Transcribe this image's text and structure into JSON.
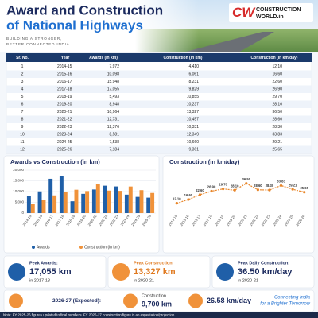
{
  "header": {
    "title_line1": "Award and Construction",
    "title_line2": "of National Highways",
    "tagline_1": "BUILDING A STRONGER,",
    "tagline_2": "BETTER CONNECTED INDIA",
    "logo_mark": "CW",
    "logo_text_1": "CONSTRUCTION",
    "logo_text_2": "WORLD.in"
  },
  "table": {
    "columns": [
      "Sr. No.",
      "Year",
      "Awards (in km)",
      "Construction (in km)",
      "Construction (in km/day)"
    ],
    "rows": [
      [
        "1",
        "2014-15",
        "7,972",
        "4,410",
        "12.10"
      ],
      [
        "2",
        "2015-16",
        "10,098",
        "6,061",
        "16.60"
      ],
      [
        "3",
        "2016-17",
        "15,948",
        "8,231",
        "22.60"
      ],
      [
        "4",
        "2017-18",
        "17,055",
        "9,829",
        "26.90"
      ],
      [
        "5",
        "2018-19",
        "5,493",
        "10,855",
        "29.70"
      ],
      [
        "6",
        "2019-20",
        "8,948",
        "10,237",
        "28.10"
      ],
      [
        "7",
        "2020-21",
        "10,964",
        "13,327",
        "36.50"
      ],
      [
        "8",
        "2021-22",
        "12,731",
        "10,457",
        "28.60"
      ],
      [
        "9",
        "2022-23",
        "12,376",
        "10,331",
        "28.30"
      ],
      [
        "10",
        "2023-24",
        "8,581",
        "12,349",
        "33.83"
      ],
      [
        "11",
        "2024-25",
        "7,538",
        "10,660",
        "29.21"
      ],
      [
        "12",
        "2025-26",
        "7,184",
        "9,361",
        "25.65"
      ]
    ]
  },
  "chart_data": [
    {
      "type": "bar",
      "title": "Awards vs Construction (in km)",
      "categories": [
        "2014-15",
        "2015-16",
        "2016-17",
        "2017-18",
        "2018-19",
        "2019-20",
        "2020-21",
        "2021-22",
        "2022-23",
        "2023-24",
        "2024-25",
        "2025-26"
      ],
      "series": [
        {
          "name": "Awards",
          "color": "#1f5fa8",
          "values": [
            7972,
            10098,
            15948,
            17055,
            5493,
            8948,
            10964,
            12731,
            12376,
            8581,
            7538,
            7184
          ]
        },
        {
          "name": "Construction (in km)",
          "color": "#f0923a",
          "values": [
            4410,
            6061,
            8231,
            9829,
            10855,
            10237,
            13327,
            10457,
            10331,
            12349,
            10660,
            9361
          ]
        }
      ],
      "ylim": [
        0,
        20000
      ],
      "yticks": [
        0,
        {
          "value": 5000,
          "label": "5,000"
        },
        {
          "value": 10000,
          "label": "10,000"
        },
        {
          "value": 15000,
          "label": "15,000"
        },
        {
          "value": 20000,
          "label": "20,000"
        }
      ],
      "grid": true,
      "legend": "bottom"
    },
    {
      "type": "line",
      "title": "Construction (in km/day)",
      "categories": [
        "2014-15",
        "2015-16",
        "2016-17",
        "2017-18",
        "2018-19",
        "2019-20",
        "2020-21",
        "2021-22",
        "2022-23",
        "2023-24",
        "2024-25",
        "2025-26"
      ],
      "values": [
        12.1,
        16.6,
        22.6,
        26.9,
        29.7,
        28.1,
        36.5,
        28.6,
        28.3,
        33.83,
        29.21,
        25.65
      ],
      "value_labels": [
        "12.10",
        "16.60",
        "22.60",
        "26.90",
        "29.70",
        "28.10",
        "36.50",
        "28.60",
        "28.30",
        "33.83",
        "29.21",
        "25.65"
      ],
      "color": "#e8862a",
      "ylim": [
        0,
        45
      ],
      "grid": false
    }
  ],
  "stats": [
    {
      "label": "Peak Awards:",
      "value": "17,055 km",
      "note": "in 2017-18"
    },
    {
      "label": "Peak Construction:",
      "value": "13,327 km",
      "note": "in 2020-21"
    },
    {
      "label": "Peak Daily Construction:",
      "value": "36.50 km/day",
      "note": "in 2020-21"
    }
  ],
  "expected": {
    "label": "2026-27 (Expected):",
    "construction_label": "Construction",
    "construction_value": "9,700 km",
    "daily_value": "26.58 km/day"
  },
  "slogan": [
    "Connecting India",
    "for a Brighter Tomorrow"
  ],
  "note": "Note: FY 2025-26 figures updated to final numbers. FY 2026-27 construction figure is an expectation/projection."
}
